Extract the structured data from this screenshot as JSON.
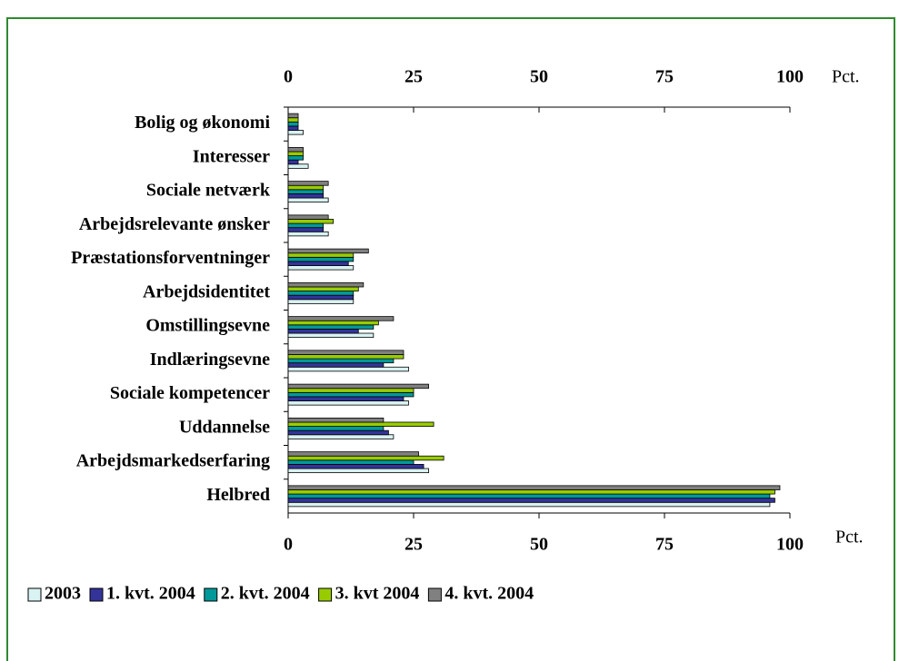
{
  "chart_data": {
    "type": "bar",
    "orientation": "horizontal",
    "xlabel": "Pct.",
    "categories": [
      "Bolig og økonomi",
      "Interesser",
      "Sociale netværk",
      "Arbejdsrelevante ønsker",
      "Præstationsforventninger",
      "Arbejdsidentitet",
      "Omstillingsevne",
      "Indlæringsevne",
      "Sociale kompetencer",
      "Uddannelse",
      "Arbejdsmarkedserfaring",
      "Helbred"
    ],
    "series": [
      {
        "name": "2003",
        "color": "#d9f2f2",
        "values": [
          3,
          4,
          8,
          8,
          13,
          13,
          17,
          24,
          24,
          21,
          28,
          96
        ]
      },
      {
        "name": "1. kvt. 2004",
        "color": "#333399",
        "values": [
          2,
          2,
          7,
          7,
          12,
          13,
          14,
          19,
          23,
          20,
          27,
          97
        ]
      },
      {
        "name": "2. kvt. 2004",
        "color": "#009999",
        "values": [
          2,
          3,
          7,
          7,
          13,
          13,
          17,
          21,
          25,
          19,
          25,
          96
        ]
      },
      {
        "name": "3. kvt 2004",
        "color": "#99cc00",
        "values": [
          2,
          3,
          7,
          9,
          13,
          14,
          18,
          23,
          25,
          29,
          31,
          97
        ]
      },
      {
        "name": "4. kvt. 2004",
        "color": "#808080",
        "values": [
          2,
          3,
          8,
          8,
          16,
          15,
          21,
          23,
          28,
          19,
          26,
          98
        ]
      }
    ],
    "xlim": [
      0,
      100
    ],
    "xticks": [
      0,
      25,
      50,
      75,
      100
    ],
    "legend": "bottom"
  }
}
